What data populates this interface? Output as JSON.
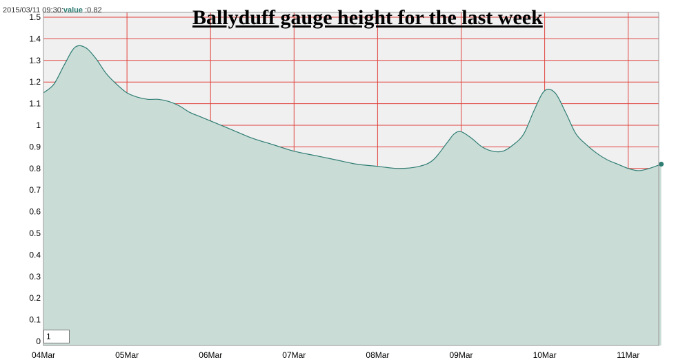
{
  "header": {
    "readout_time": "2015/03/11 09:30:",
    "readout_value_label": "value",
    "readout_value": ":0.82"
  },
  "zoom_input_value": "1",
  "colors": {
    "plot_bg": "#f0f0f0",
    "grid": "#e0413c",
    "area_fill": "#c9dcd6",
    "area_line": "#2e7d73"
  },
  "chart_data": {
    "type": "area",
    "title": "Ballyduff gauge height for the last week",
    "xlabel": "",
    "ylabel": "",
    "ylim": [
      0,
      1.55
    ],
    "yticks": [
      "0",
      "0.1",
      "0.2",
      "0.3",
      "0.4",
      "0.5",
      "0.6",
      "0.7",
      "0.8",
      "0.9",
      "1",
      "1.1",
      "1.2",
      "1.3",
      "1.4",
      "1.5"
    ],
    "xticks": [
      "04Mar",
      "05Mar",
      "06Mar",
      "07Mar",
      "08Mar",
      "09Mar",
      "10Mar",
      "11Mar"
    ],
    "grid": true,
    "series": [
      {
        "x": [
          "2015-03-04 00:00",
          "2015-03-04 03:00",
          "2015-03-04 06:00",
          "2015-03-04 09:00",
          "2015-03-04 12:00",
          "2015-03-04 15:00",
          "2015-03-04 18:00",
          "2015-03-04 21:00",
          "2015-03-05 00:00",
          "2015-03-05 03:00",
          "2015-03-05 06:00",
          "2015-03-05 09:00",
          "2015-03-05 12:00",
          "2015-03-05 15:00",
          "2015-03-05 18:00",
          "2015-03-05 21:00",
          "2015-03-06 00:00",
          "2015-03-06 06:00",
          "2015-03-06 12:00",
          "2015-03-06 18:00",
          "2015-03-07 00:00",
          "2015-03-07 06:00",
          "2015-03-07 12:00",
          "2015-03-07 18:00",
          "2015-03-08 00:00",
          "2015-03-08 06:00",
          "2015-03-08 12:00",
          "2015-03-08 16:00",
          "2015-03-08 20:00",
          "2015-03-08 22:00",
          "2015-03-09 00:00",
          "2015-03-09 03:00",
          "2015-03-09 06:00",
          "2015-03-09 09:00",
          "2015-03-09 12:00",
          "2015-03-09 15:00",
          "2015-03-09 18:00",
          "2015-03-09 21:00",
          "2015-03-10 00:00",
          "2015-03-10 03:00",
          "2015-03-10 06:00",
          "2015-03-10 09:00",
          "2015-03-10 12:00",
          "2015-03-10 15:00",
          "2015-03-10 18:00",
          "2015-03-10 21:00",
          "2015-03-11 00:00",
          "2015-03-11 03:00",
          "2015-03-11 06:00",
          "2015-03-11 09:30"
        ],
        "values": [
          1.15,
          1.19,
          1.28,
          1.36,
          1.36,
          1.31,
          1.24,
          1.19,
          1.15,
          1.13,
          1.12,
          1.12,
          1.11,
          1.09,
          1.06,
          1.04,
          1.02,
          0.98,
          0.94,
          0.91,
          0.88,
          0.86,
          0.84,
          0.82,
          0.81,
          0.8,
          0.81,
          0.84,
          0.92,
          0.96,
          0.97,
          0.94,
          0.9,
          0.88,
          0.88,
          0.91,
          0.96,
          1.07,
          1.16,
          1.15,
          1.06,
          0.96,
          0.91,
          0.87,
          0.84,
          0.82,
          0.8,
          0.79,
          0.8,
          0.82
        ]
      }
    ]
  }
}
